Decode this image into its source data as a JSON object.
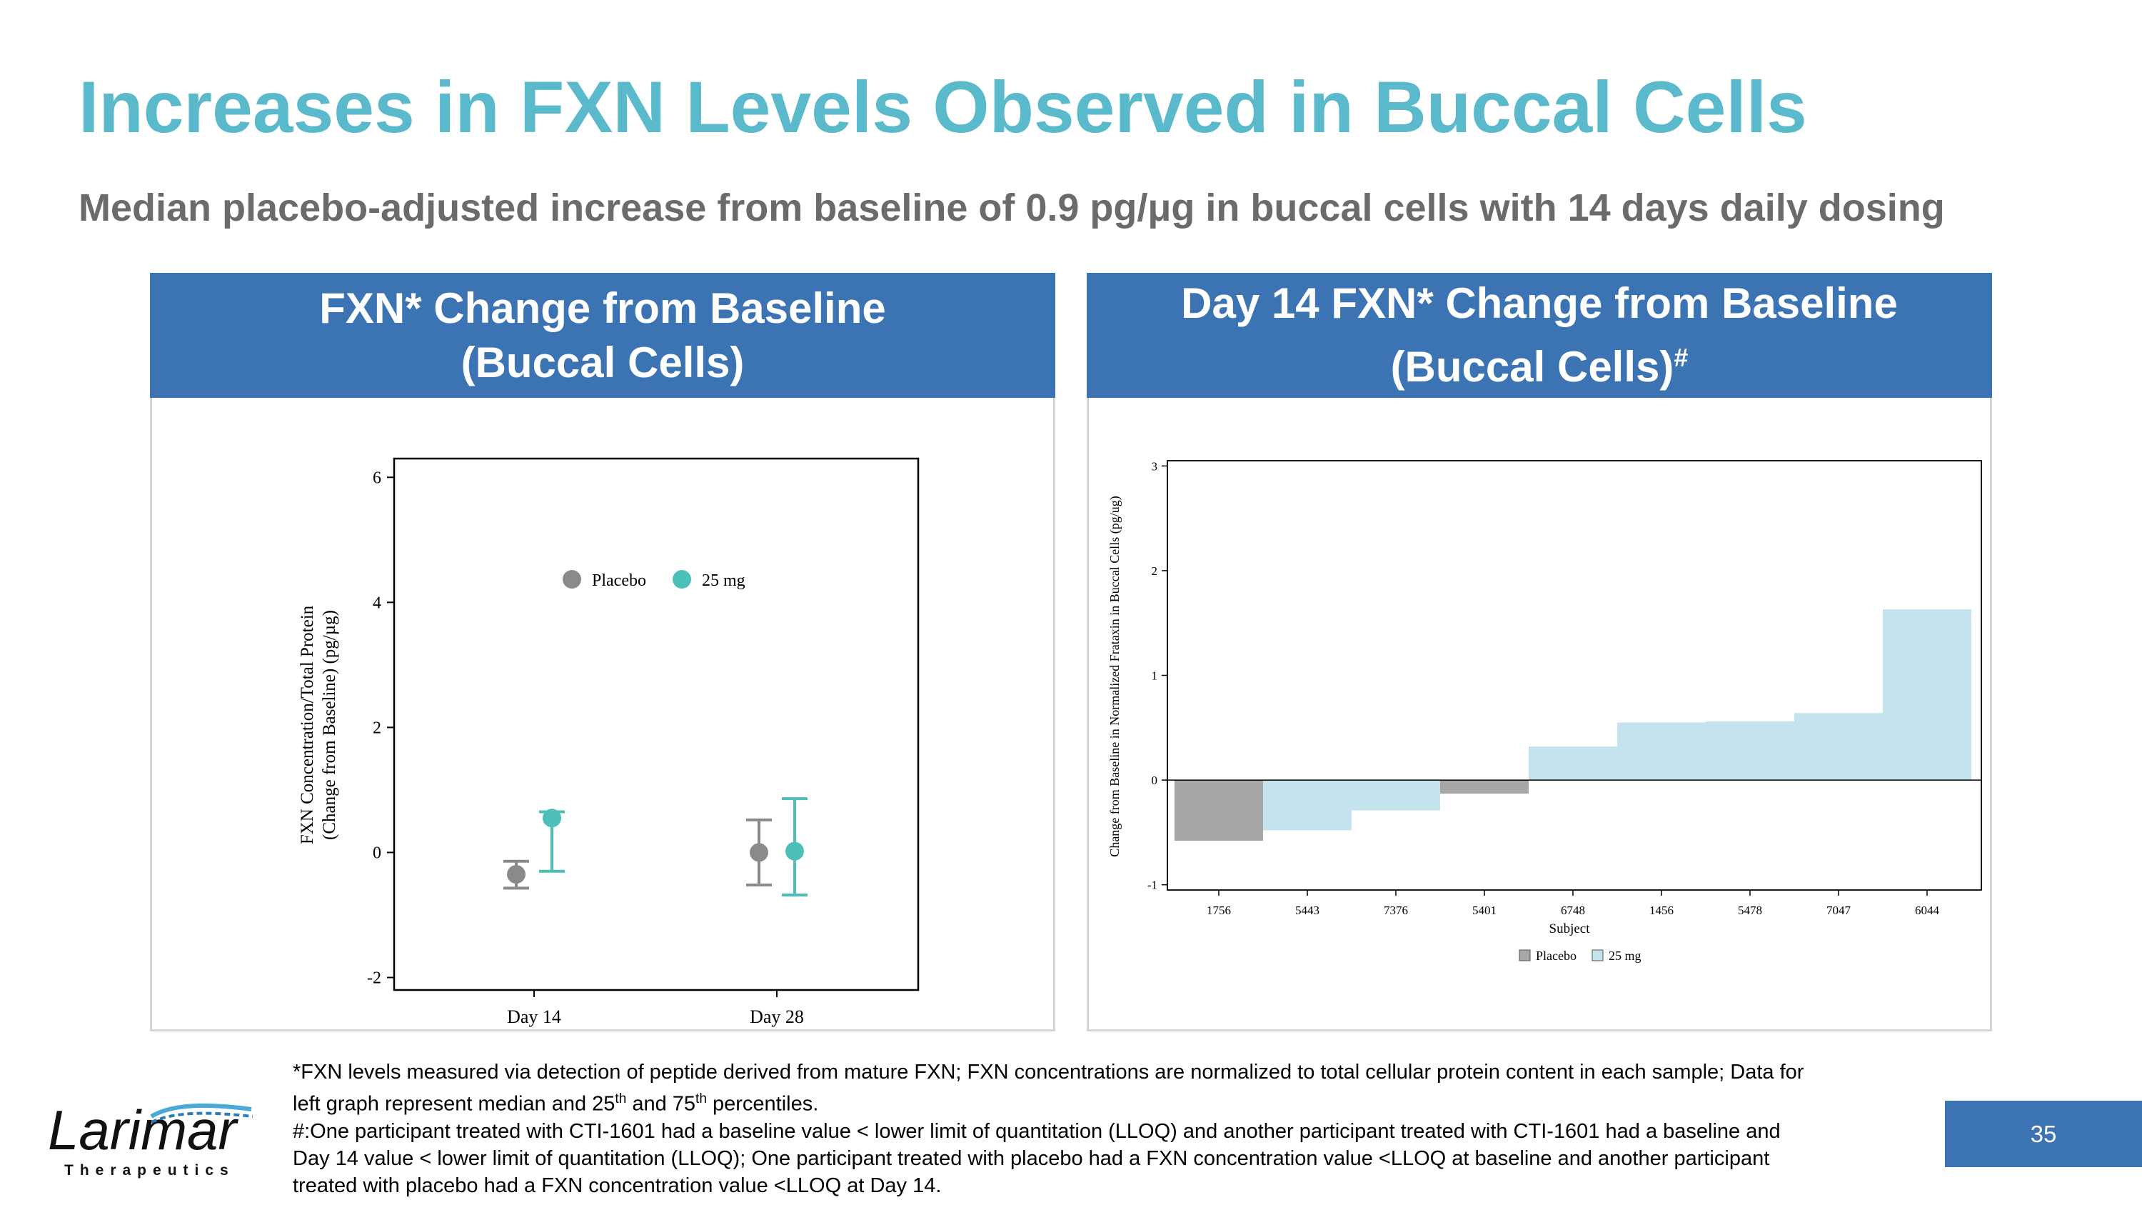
{
  "title": "Increases in FXN Levels Observed in Buccal Cells",
  "subtitle": "Median placebo-adjusted increase from baseline of 0.9 pg/μg in buccal cells with 14 days daily dosing",
  "colors": {
    "title": "#5bb9cc",
    "header": "#3b73b3",
    "placebo": "#8a8a8a",
    "dose": "#4cc0b8",
    "bar_placebo": "#a7a7a7",
    "bar_dose": "#c5e3ee"
  },
  "left_panel": {
    "header_line1": "FXN* Change from Baseline",
    "header_line2": "(Buccal Cells)"
  },
  "right_panel": {
    "header_line1": "Day 14 FXN* Change from Baseline",
    "header_line2": "(Buccal Cells)",
    "header_sup": "#"
  },
  "chart_data": [
    {
      "type": "scatter",
      "title": "FXN* Change from Baseline (Buccal Cells)",
      "ylabel_line1": "FXN Concentration/Total Protein",
      "ylabel_line2": "(Change from Baseline) (pg/µg)",
      "categories": [
        "Day 14",
        "Day 28"
      ],
      "ylim": [
        -2.2,
        6.3
      ],
      "yticks": [
        "6",
        "4",
        "2",
        "0",
        "-2"
      ],
      "legend": [
        "Placebo",
        "25 mg"
      ],
      "legend_position": "top",
      "series": [
        {
          "name": "Placebo",
          "median": [
            -0.35,
            0.0
          ],
          "p25": [
            -0.57,
            -0.52
          ],
          "p75": [
            -0.14,
            0.52
          ]
        },
        {
          "name": "25 mg",
          "median": [
            0.55,
            0.02
          ],
          "p25": [
            -0.3,
            -0.68
          ],
          "p75": [
            0.65,
            0.86
          ]
        }
      ]
    },
    {
      "type": "bar",
      "title": "Day 14 FXN* Change from Baseline (Buccal Cells)#",
      "xlabel": "Subject",
      "ylabel": "Change from Baseline in Normalized Frataxin in Buccal Cells (pg/ug)",
      "categories": [
        "1756",
        "5443",
        "7376",
        "5401",
        "6748",
        "1456",
        "5478",
        "7047",
        "6044"
      ],
      "values": [
        -0.58,
        -0.48,
        -0.29,
        -0.13,
        0.32,
        0.55,
        0.56,
        0.64,
        1.63
      ],
      "groups": [
        "Placebo",
        "25 mg",
        "25 mg",
        "Placebo",
        "25 mg",
        "25 mg",
        "25 mg",
        "25 mg",
        "25 mg"
      ],
      "ylim": [
        -1.05,
        3.05
      ],
      "yticks": [
        "3",
        "2",
        "1",
        "0",
        "-1"
      ],
      "legend": [
        "Placebo",
        "25 mg"
      ],
      "legend_position": "bottom"
    }
  ],
  "footnote": {
    "line1": "*FXN levels measured via detection of peptide derived from mature FXN; FXN concentrations are normalized to total cellular protein content in each sample; Data for",
    "line2a": "left graph represent median and 25",
    "sup_th": "th",
    "line2b": " and 75",
    "line2c": " percentiles.",
    "line3": "#:One participant treated with CTI-1601 had a baseline value < lower limit of quantitation (LLOQ) and another participant treated with CTI-1601 had a baseline and",
    "line4": "Day 14 value < lower limit of quantitation (LLOQ); One participant treated with placebo had a FXN concentration value <LLOQ  at baseline and another participant",
    "line5": "treated with placebo had a FXN concentration value <LLOQ at Day 14."
  },
  "logo": {
    "name": "Larimar",
    "tagline": "Therapeutics"
  },
  "page_number": "35"
}
